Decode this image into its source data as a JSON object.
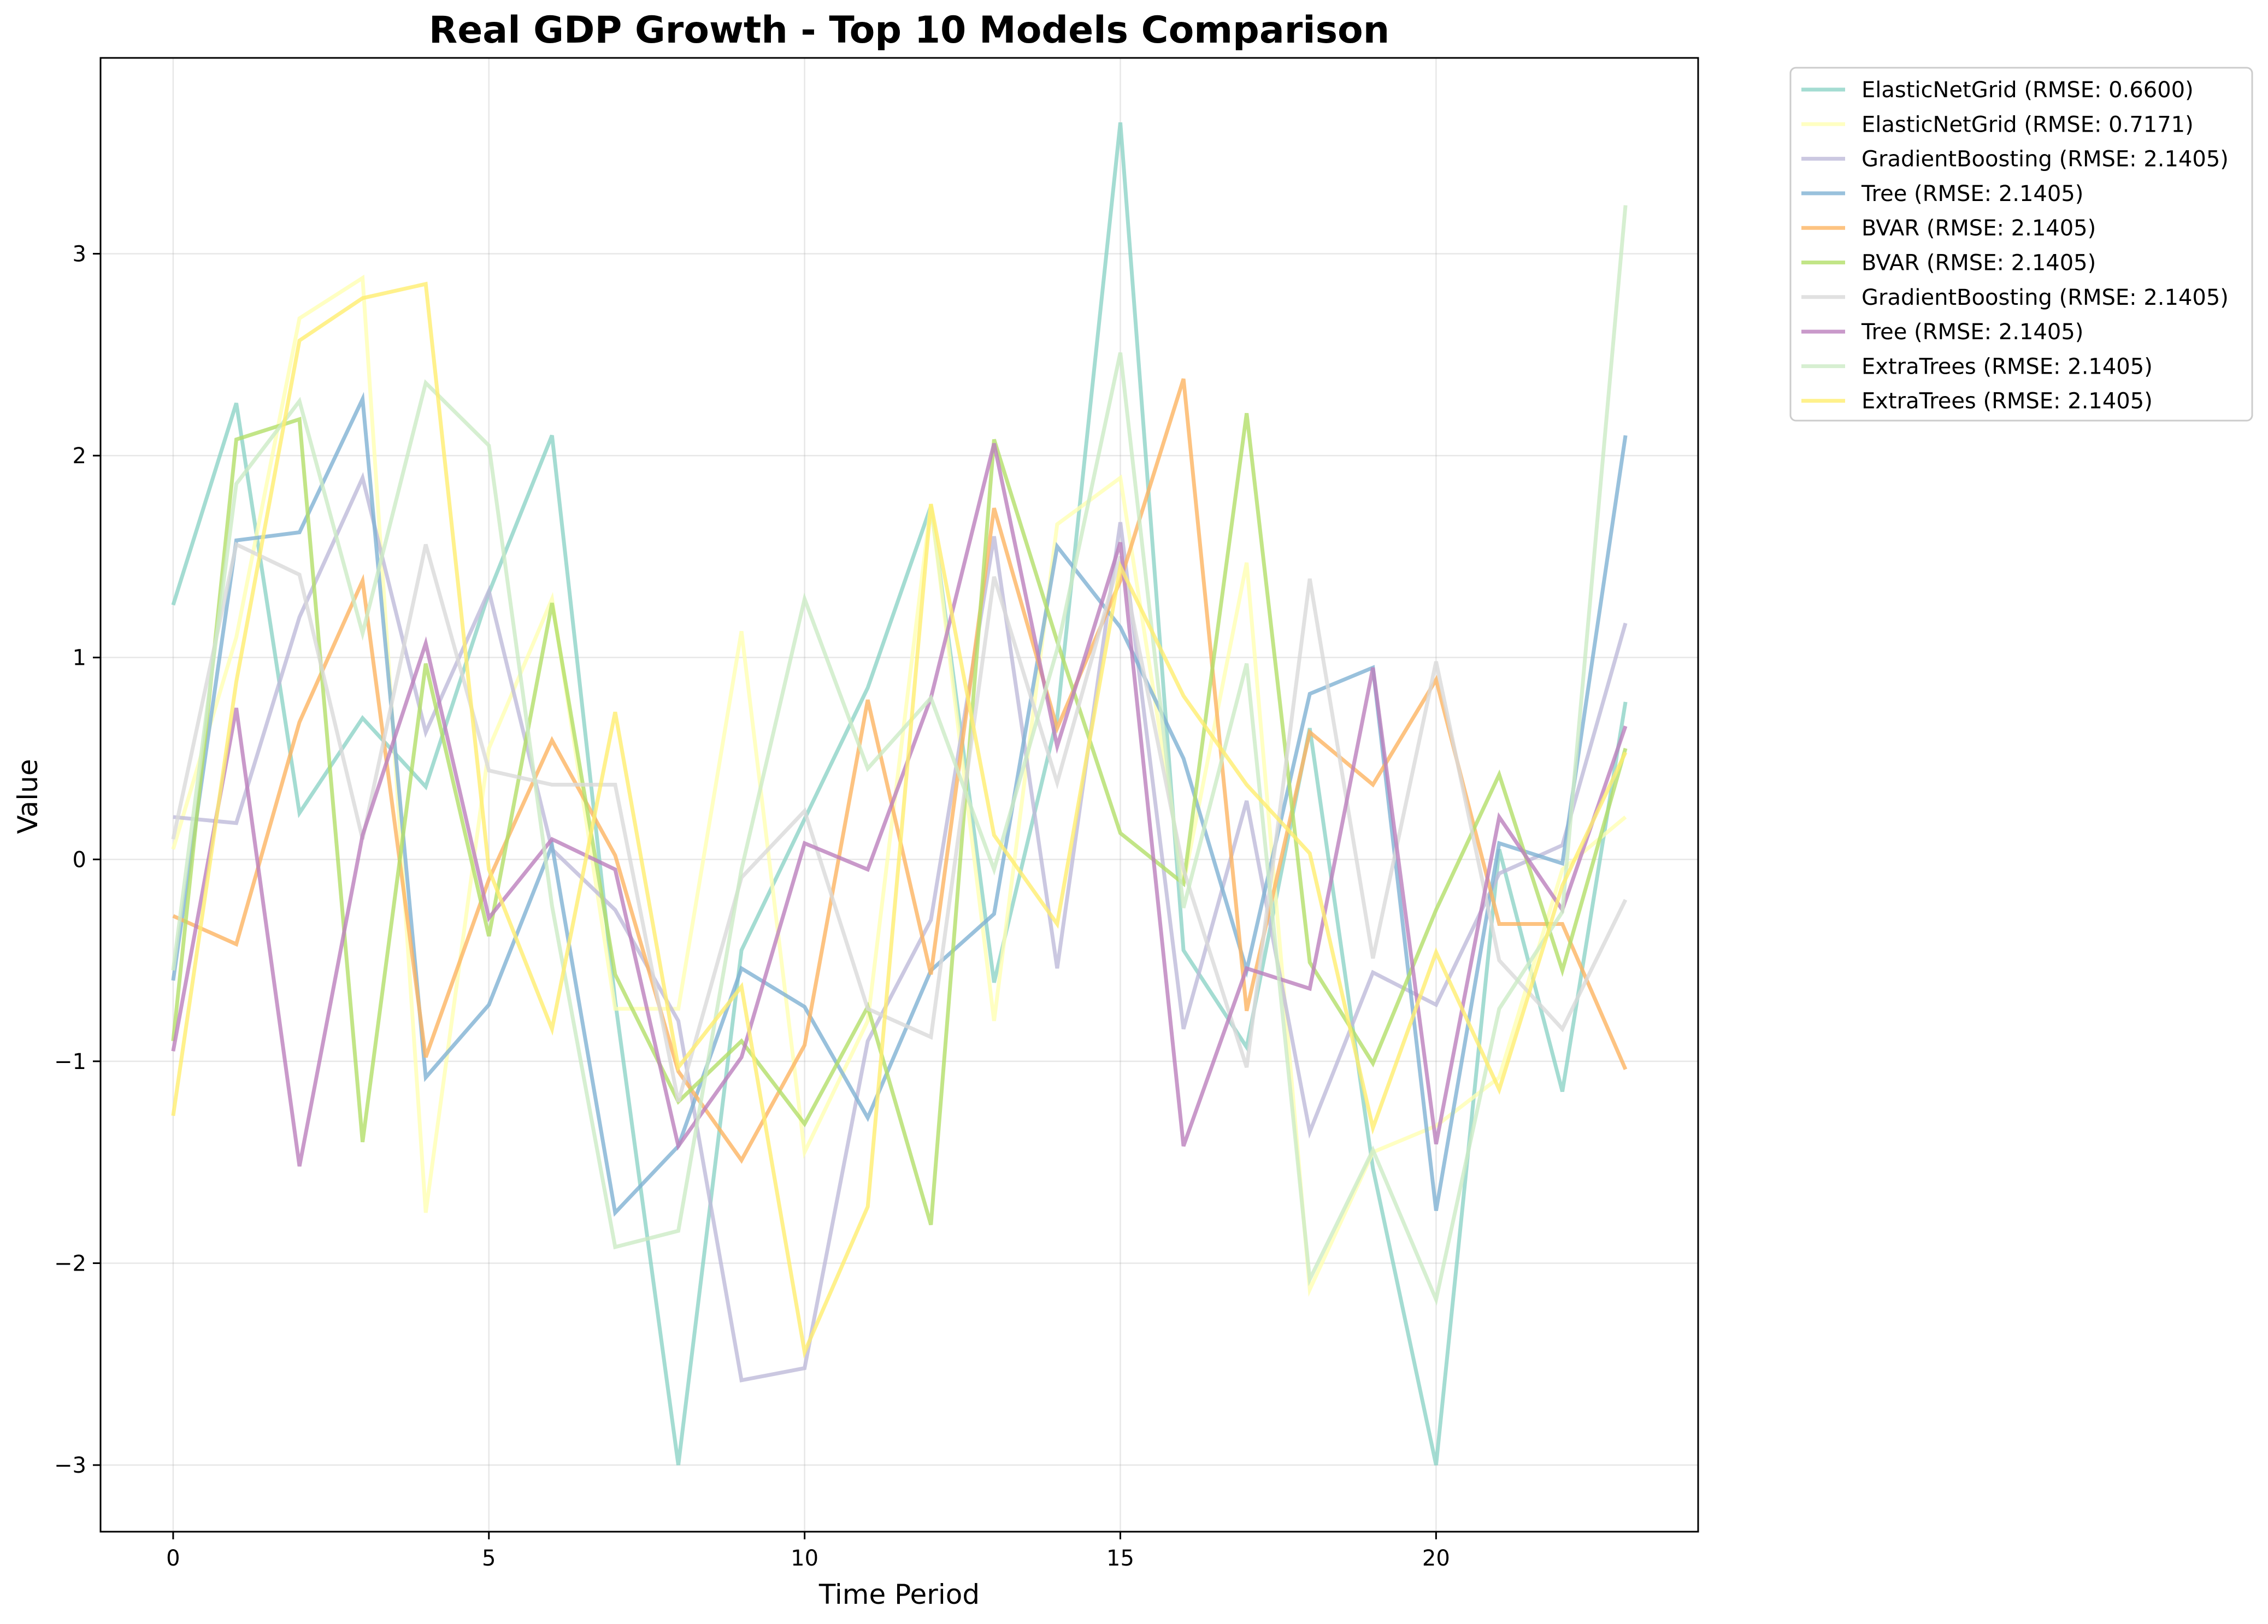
{
  "chart_data": {
    "type": "line",
    "title": "Real GDP Growth - Top 10 Models Comparison",
    "xlabel": "Time Period",
    "ylabel": "Value",
    "xlim": [
      -1.15,
      24.15
    ],
    "ylim": [
      -3.33,
      3.97
    ],
    "x_ticks": [
      0,
      5,
      10,
      15,
      20
    ],
    "x_tick_labels": [
      "0",
      "5",
      "10",
      "15",
      "20"
    ],
    "y_ticks": [
      -3,
      -2,
      -1,
      0,
      1,
      2,
      3
    ],
    "y_tick_labels": [
      "−3",
      "−2",
      "−1",
      "0",
      "1",
      "2",
      "3"
    ],
    "grid": true,
    "legend_position": "outside-right",
    "x": [
      0,
      1,
      2,
      3,
      4,
      5,
      6,
      7,
      8,
      9,
      10,
      11,
      12,
      13,
      14,
      15,
      16,
      17,
      18,
      19,
      20,
      21,
      22,
      23
    ],
    "series": [
      {
        "name": "ElasticNetGrid (RMSE: 0.6600)",
        "color": "#8dd3c7",
        "values": [
          1.26,
          2.26,
          0.23,
          0.7,
          0.36,
          1.32,
          2.1,
          -0.7,
          -3.0,
          -0.45,
          0.2,
          0.85,
          1.75,
          -0.61,
          0.7,
          3.65,
          -0.45,
          -0.93,
          0.65,
          -1.53,
          -3.0,
          0.05,
          -1.15,
          0.78
        ]
      },
      {
        "name": "ElasticNetGrid (RMSE: 0.7171)",
        "color": "#ffffb3",
        "values": [
          0.05,
          1.1,
          2.68,
          2.88,
          -1.75,
          0.55,
          1.29,
          -0.74,
          -0.74,
          1.13,
          -1.45,
          -0.8,
          1.76,
          -0.8,
          1.66,
          1.89,
          -0.12,
          1.47,
          -2.13,
          -1.45,
          -1.32,
          -1.08,
          -0.05,
          0.21
        ]
      },
      {
        "name": "GradientBoosting (RMSE: 2.1405)",
        "color": "#bebada",
        "values": [
          0.21,
          0.18,
          1.2,
          1.89,
          0.63,
          1.33,
          0.05,
          -0.25,
          -0.8,
          -2.58,
          -2.52,
          -0.9,
          -0.3,
          1.6,
          -0.54,
          1.67,
          -0.84,
          0.29,
          -1.35,
          -0.56,
          -0.72,
          -0.07,
          0.07,
          1.17
        ]
      },
      {
        "name": "Tree (RMSE: 2.1405)",
        "color": "#80b1d3",
        "values": [
          -0.6,
          1.58,
          1.62,
          2.28,
          -1.08,
          -0.72,
          0.07,
          -1.75,
          -1.42,
          -0.54,
          -0.73,
          -1.28,
          -0.55,
          -0.27,
          1.55,
          1.15,
          0.5,
          -0.55,
          0.82,
          0.95,
          -1.74,
          0.08,
          -0.02,
          2.1
        ]
      },
      {
        "name": "BVAR (RMSE: 2.1405)",
        "color": "#fdb462",
        "values": [
          -0.28,
          -0.42,
          0.68,
          1.38,
          -0.98,
          -0.1,
          0.59,
          0.02,
          -1.05,
          -1.49,
          -0.92,
          0.79,
          -0.57,
          1.74,
          0.65,
          1.38,
          2.38,
          -0.75,
          0.63,
          0.37,
          0.89,
          -0.32,
          -0.32,
          -1.04
        ]
      },
      {
        "name": "BVAR (RMSE: 2.1405)",
        "color": "#b3de69",
        "values": [
          -0.9,
          2.08,
          2.18,
          -1.4,
          0.97,
          -0.38,
          1.27,
          -0.57,
          -1.2,
          -0.9,
          -1.31,
          -0.73,
          -1.81,
          2.08,
          1.08,
          0.13,
          -0.12,
          2.21,
          -0.51,
          -1.01,
          -0.25,
          0.42,
          -0.55,
          0.55
        ]
      },
      {
        "name": "GradientBoosting (RMSE: 2.1405)",
        "color": "#d9d9d9",
        "values": [
          0.1,
          1.56,
          1.41,
          0.1,
          1.56,
          0.44,
          0.37,
          0.37,
          -1.2,
          -0.09,
          0.24,
          -0.74,
          -0.88,
          1.4,
          0.38,
          1.5,
          -0.05,
          -1.03,
          1.39,
          -0.49,
          0.98,
          -0.5,
          -0.84,
          -0.2
        ]
      },
      {
        "name": "Tree (RMSE: 2.1405)",
        "color": "#bc80bd",
        "values": [
          -0.95,
          0.75,
          -1.52,
          0.12,
          1.07,
          -0.29,
          0.1,
          -0.05,
          -1.42,
          -0.98,
          0.08,
          -0.05,
          0.8,
          2.06,
          0.56,
          1.57,
          -1.42,
          -0.54,
          -0.64,
          0.95,
          -1.41,
          0.21,
          -0.25,
          0.66
        ]
      },
      {
        "name": "ExtraTrees (RMSE: 2.1405)",
        "color": "#ccebc5",
        "values": [
          -0.55,
          1.86,
          2.27,
          1.12,
          2.36,
          2.05,
          -0.23,
          -1.92,
          -1.84,
          -0.05,
          1.29,
          0.45,
          0.8,
          -0.05,
          1.04,
          2.51,
          -0.24,
          0.97,
          -2.08,
          -1.44,
          -2.18,
          -0.74,
          -0.26,
          3.24
        ]
      },
      {
        "name": "ExtraTrees (RMSE: 2.1405)",
        "color": "#ffed6f",
        "values": [
          -1.27,
          0.88,
          2.57,
          2.78,
          2.85,
          -0.05,
          -0.84,
          0.73,
          -1.03,
          -0.63,
          -2.44,
          -1.72,
          1.76,
          0.12,
          -0.32,
          1.45,
          0.81,
          0.37,
          0.03,
          -1.33,
          -0.46,
          -1.14,
          -0.13,
          0.53
        ]
      }
    ]
  }
}
